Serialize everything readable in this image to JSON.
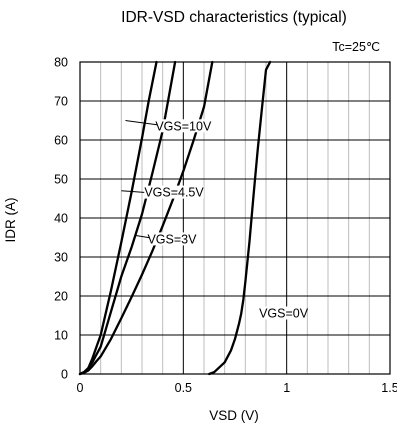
{
  "chart_data": {
    "type": "line",
    "title": "IDR-VSD characteristics (typical)",
    "xlabel": "VSD (V)",
    "ylabel": "IDR (A)",
    "xlim": [
      0,
      1.5
    ],
    "ylim": [
      0,
      80
    ],
    "grid": true,
    "x_major_ticks": [
      0,
      0.5,
      1,
      1.5
    ],
    "x_tick_labels": [
      "0",
      "0.5",
      "1",
      "1.5"
    ],
    "x_minor_step": 0.1,
    "y_ticks": [
      0,
      10,
      20,
      30,
      40,
      50,
      60,
      70,
      80
    ],
    "y_tick_labels": [
      "0",
      "10",
      "20",
      "30",
      "40",
      "50",
      "60",
      "70",
      "80"
    ],
    "annotations": [
      {
        "text": "Tc=25℃",
        "position": "top-right"
      }
    ],
    "series": [
      {
        "name": "VGS=10V",
        "label_anchor": [
          0.22,
          65
        ],
        "x": [
          0,
          0.02,
          0.04,
          0.06,
          0.08,
          0.1,
          0.15,
          0.2,
          0.25,
          0.3,
          0.3325,
          0.37
        ],
        "y": [
          0,
          0.5,
          1.5,
          4,
          7,
          10,
          21.4,
          33.8,
          46.8,
          60.5,
          70,
          80
        ]
      },
      {
        "name": "VGS=4.5V",
        "label_anchor": [
          0.2,
          47
        ],
        "x": [
          0,
          0.02,
          0.04,
          0.06,
          0.08,
          0.1,
          0.15,
          0.2,
          0.25,
          0.3,
          0.35,
          0.4,
          0.46
        ],
        "y": [
          0,
          0.5,
          1.5,
          3,
          5,
          7,
          16,
          25,
          32.6,
          41,
          51.4,
          62.4,
          80
        ]
      },
      {
        "name": "VGS=3V",
        "label_anchor": [
          0.27,
          35.5
        ],
        "x": [
          0,
          0.02,
          0.04,
          0.06,
          0.08,
          0.1,
          0.15,
          0.2,
          0.25,
          0.3,
          0.35,
          0.4,
          0.45,
          0.5,
          0.55,
          0.6,
          0.64
        ],
        "y": [
          0,
          0.3,
          0.9,
          2,
          3.3,
          4.5,
          9,
          14.3,
          19.8,
          25.5,
          31.5,
          38,
          44.8,
          52,
          60,
          68.5,
          80
        ]
      },
      {
        "name": "VGS=0V",
        "x": [
          0.625,
          0.65,
          0.7,
          0.73,
          0.75,
          0.77,
          0.78,
          0.79,
          0.8,
          0.82,
          0.84,
          0.86,
          0.88,
          0.9,
          0.92
        ],
        "y": [
          0,
          0.5,
          3,
          6,
          9,
          13,
          15.5,
          19,
          23.5,
          34,
          46,
          57.5,
          68,
          78,
          80
        ]
      }
    ],
    "series_labels": [
      {
        "text": "VGS=10V",
        "x": 0.5,
        "y": 63,
        "anchor": "middle"
      },
      {
        "text": "VGS=4.5V",
        "x": 0.455,
        "y": 46,
        "anchor": "middle"
      },
      {
        "text": "VGS=3V",
        "x": 0.445,
        "y": 34,
        "anchor": "middle"
      },
      {
        "text": "VGS=0V",
        "x": 0.985,
        "y": 15,
        "anchor": "middle"
      }
    ],
    "leaders": [
      {
        "from": [
          0.22,
          65
        ],
        "to": [
          0.5,
          63
        ]
      },
      {
        "from": [
          0.2,
          47
        ],
        "to": [
          0.455,
          46
        ]
      },
      {
        "from": [
          0.27,
          35.5
        ],
        "to": [
          0.445,
          34
        ]
      }
    ]
  }
}
